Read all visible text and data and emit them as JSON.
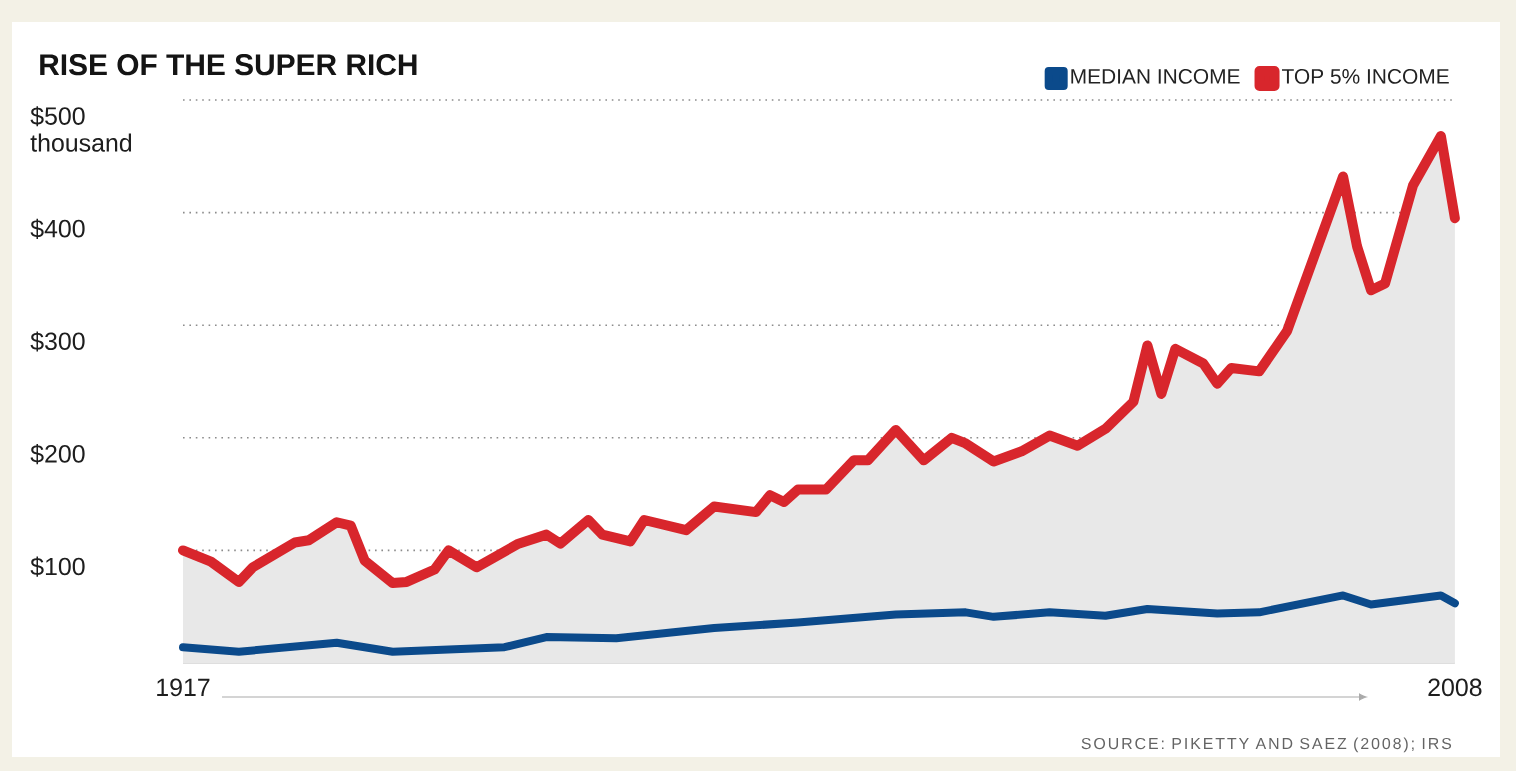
{
  "chart_data": {
    "type": "line",
    "title": "RISE OF THE SUPER RICH",
    "xlim": [
      1917,
      2008
    ],
    "xticks": [
      1917,
      2008
    ],
    "ylim": [
      0,
      500
    ],
    "yticks": [
      {
        "value": 100,
        "label": "$100"
      },
      {
        "value": 200,
        "label": "$200"
      },
      {
        "value": 300,
        "label": "$300"
      },
      {
        "value": 400,
        "label": "$400"
      },
      {
        "value": 500,
        "label": "$500 thousand"
      }
    ],
    "grid": "y",
    "legend": "top right",
    "marker": "none",
    "series": [
      {
        "name": "MEDIAN INCOME",
        "color": "#0b4a8b",
        "x": [
          1917,
          1921,
          1928,
          1932,
          1940,
          1943,
          1948,
          1955,
          1961,
          1968,
          1973,
          1975,
          1979,
          1983,
          1986,
          1991,
          1994,
          2000,
          2002,
          2007,
          2008
        ],
        "values": [
          14,
          10,
          18,
          10,
          14,
          23,
          22,
          31,
          36,
          43,
          45,
          41,
          45,
          42,
          48,
          44,
          45,
          60,
          52,
          60,
          53
        ]
      },
      {
        "name": "TOP 5% INCOME",
        "color": "#d8262c",
        "type": "area",
        "x": [
          1917,
          1919,
          1921,
          1922,
          1925,
          1926,
          1928,
          1929,
          1930,
          1932,
          1933,
          1935,
          1936,
          1938,
          1940,
          1941,
          1943,
          1944,
          1946,
          1947,
          1949,
          1950,
          1953,
          1955,
          1958,
          1959,
          1960,
          1961,
          1963,
          1965,
          1966,
          1968,
          1970,
          1972,
          1973,
          1975,
          1977,
          1979,
          1981,
          1983,
          1985,
          1986,
          1987,
          1988,
          1990,
          1991,
          1992,
          1994,
          1996,
          2000,
          2001,
          2002,
          2003,
          2005,
          2007,
          2008
        ],
        "values": [
          100,
          90,
          72,
          85,
          107,
          109,
          125,
          122,
          91,
          71,
          72,
          83,
          100,
          85,
          99,
          106,
          114,
          106,
          127,
          114,
          108,
          127,
          118,
          139,
          134,
          149,
          143,
          154,
          154,
          180,
          180,
          207,
          180,
          200,
          195,
          179,
          188,
          202,
          193,
          208,
          232,
          282,
          239,
          279,
          266,
          248,
          262,
          259,
          295,
          432,
          370,
          331,
          337,
          424,
          468,
          395
        ]
      }
    ],
    "annotations": [
      "SOURCE: PIKETTY AND SAEZ (2008); IRS"
    ]
  }
}
